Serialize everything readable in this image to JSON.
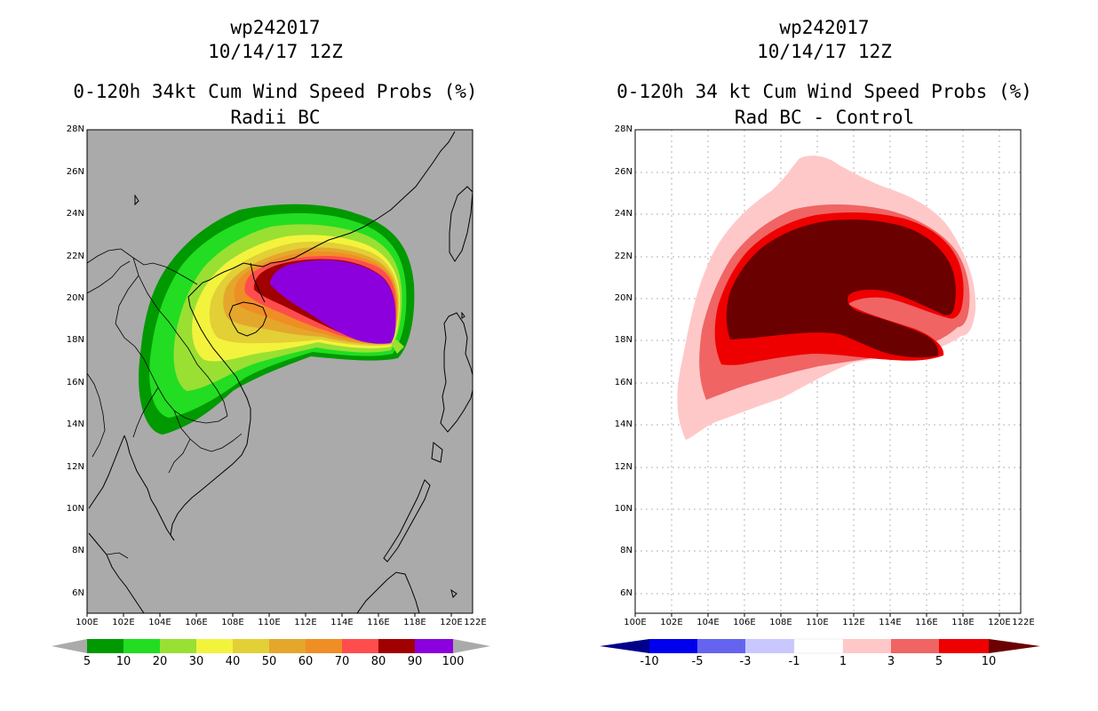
{
  "left_panel": {
    "storm_id": "wp242017",
    "datetime": "10/14/17 12Z",
    "title_line1": "0-120h 34kt Cum Wind Speed Probs (%)",
    "title_line2": "Radii BC",
    "background_color": "#aaaaaa",
    "colorbar": {
      "labels": [
        "5",
        "10",
        "20",
        "30",
        "40",
        "50",
        "60",
        "70",
        "80",
        "90",
        "100"
      ],
      "colors": [
        "#009900",
        "#22dd22",
        "#99e033",
        "#f3f33d",
        "#e3cf36",
        "#e4a72c",
        "#ef8e25",
        "#ff4d4d",
        "#a00000",
        "#8b00dd"
      ],
      "end_color": "#aaaaaa"
    }
  },
  "right_panel": {
    "storm_id": "wp242017",
    "datetime": "10/14/17 12Z",
    "title_line1": "0-120h 34 kt Cum Wind Speed Probs (%)",
    "title_line2": "Rad BC - Control",
    "background_color": "#ffffff",
    "colorbar": {
      "labels": [
        "-10",
        "-5",
        "-3",
        "-1",
        "1",
        "3",
        "5",
        "10"
      ],
      "colors": [
        "#00008b",
        "#0000ee",
        "#6464f0",
        "#c8c8ff",
        "#ffffff",
        "#ffc8c8",
        "#f06464",
        "#ee0000",
        "#6b0000"
      ]
    }
  },
  "lat_labels": [
    "28N",
    "26N",
    "24N",
    "22N",
    "20N",
    "18N",
    "16N",
    "14N",
    "12N",
    "10N",
    "8N",
    "6N"
  ],
  "lon_labels": [
    "100E",
    "102E",
    "104E",
    "106E",
    "108E",
    "110E",
    "112E",
    "114E",
    "116E",
    "118E",
    "120E",
    "122E"
  ],
  "map_extent": {
    "lon_min": 100,
    "lon_max": 121,
    "lat_min": 5.1,
    "lat_max": 28
  }
}
